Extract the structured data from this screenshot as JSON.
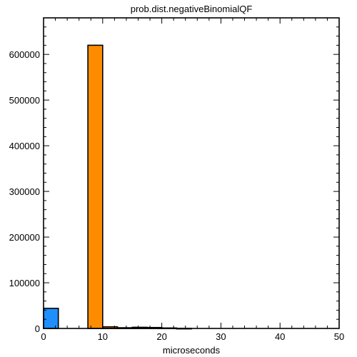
{
  "chart_data": {
    "type": "bar",
    "title": "prob.dist.negativeBinomialQF",
    "xlabel": "microseconds",
    "ylabel": "",
    "xlim": [
      0,
      50
    ],
    "ylim": [
      0,
      680000
    ],
    "xticks": [
      0,
      10,
      20,
      30,
      40,
      50
    ],
    "yticks": [
      0,
      100000,
      200000,
      300000,
      400000,
      500000,
      600000
    ],
    "grid": false,
    "bins": [
      {
        "x0": 0,
        "x1": 2.5,
        "value": 44000,
        "color": "#1f8fff"
      },
      {
        "x0": 2.5,
        "x1": 5,
        "value": 0,
        "color": "#1f8fff"
      },
      {
        "x0": 5,
        "x1": 7.5,
        "value": 0,
        "color": "#ff8c00"
      },
      {
        "x0": 7.5,
        "x1": 10,
        "value": 620000,
        "color": "#ff8c00"
      },
      {
        "x0": 10,
        "x1": 12.5,
        "value": 3500,
        "color": "#ff8c00"
      },
      {
        "x0": 12.5,
        "x1": 15,
        "value": 1500,
        "color": "#ff8c00"
      },
      {
        "x0": 15,
        "x1": 17.5,
        "value": 2500,
        "color": "#ff8c00"
      },
      {
        "x0": 17.5,
        "x1": 20,
        "value": 2000,
        "color": "#ff8c00"
      },
      {
        "x0": 20,
        "x1": 22.5,
        "value": 1000,
        "color": "#ff8c00"
      },
      {
        "x0": 22.5,
        "x1": 25,
        "value": 300,
        "color": "#ff8c00"
      }
    ]
  }
}
